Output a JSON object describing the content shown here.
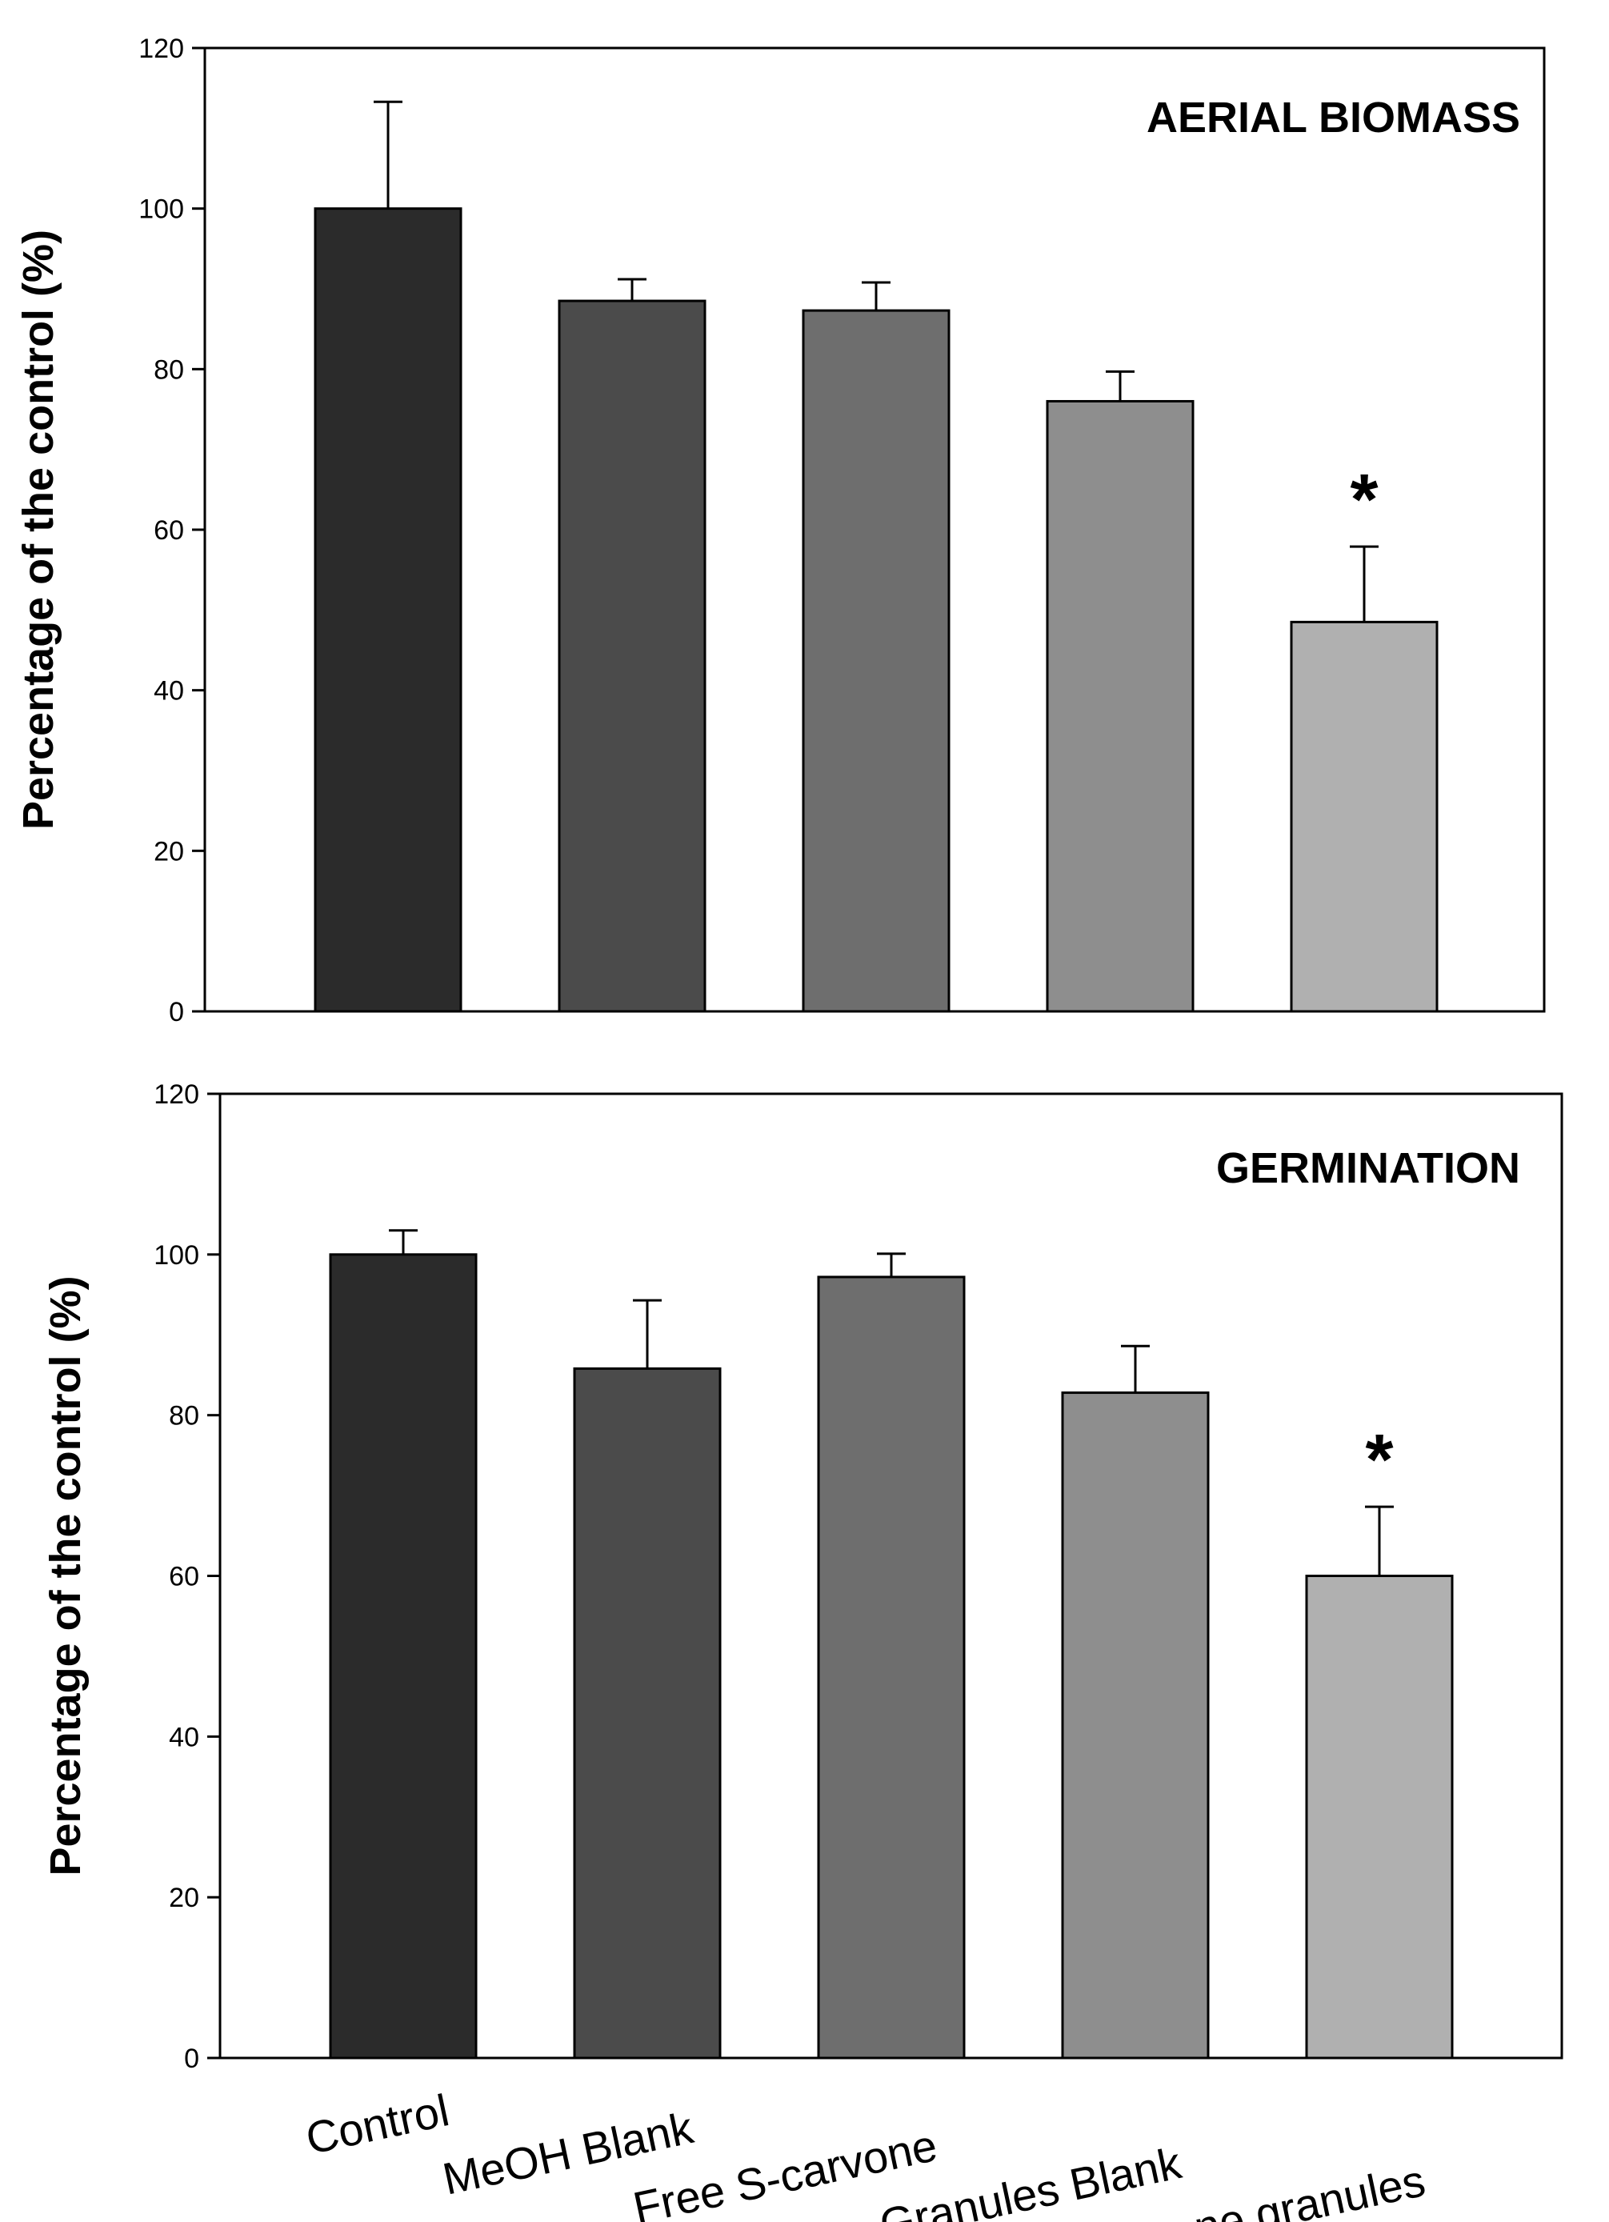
{
  "chart_data": [
    {
      "type": "bar",
      "title": "AERIAL BIOMASS",
      "xlabel": "",
      "ylabel": "Percentage of the control (%)",
      "ylim": [
        0,
        120
      ],
      "yticks": [
        0,
        20,
        40,
        60,
        80,
        100,
        120
      ],
      "categories": [
        "Control",
        "MeOH Blank",
        "Free S-carvone",
        "Granules Blank",
        "S-carvone granules"
      ],
      "values": [
        100,
        88.5,
        87.3,
        76.0,
        48.5
      ],
      "errors": [
        13.3,
        2.7,
        3.5,
        3.7,
        9.4
      ],
      "colors": [
        "#2b2b2b",
        "#4b4b4b",
        "#6e6e6e",
        "#8e8e8e",
        "#b0b0b0"
      ],
      "significance": [
        "",
        "",
        "",
        "",
        "*"
      ]
    },
    {
      "type": "bar",
      "title": "GERMINATION",
      "xlabel": "",
      "ylabel": "Percentage of the control (%)",
      "ylim": [
        0,
        120
      ],
      "yticks": [
        0,
        20,
        40,
        60,
        80,
        100,
        120
      ],
      "categories": [
        "Control",
        "MeOH Blank",
        "Free S-carvone",
        "Granules Blank",
        "S-carvone granules"
      ],
      "values": [
        100,
        85.8,
        97.2,
        82.8,
        60.0
      ],
      "errors": [
        3.0,
        8.5,
        2.9,
        5.8,
        8.6
      ],
      "colors": [
        "#2b2b2b",
        "#4b4b4b",
        "#6e6e6e",
        "#8e8e8e",
        "#b0b0b0"
      ],
      "significance": [
        "",
        "",
        "",
        "",
        "*"
      ]
    }
  ]
}
